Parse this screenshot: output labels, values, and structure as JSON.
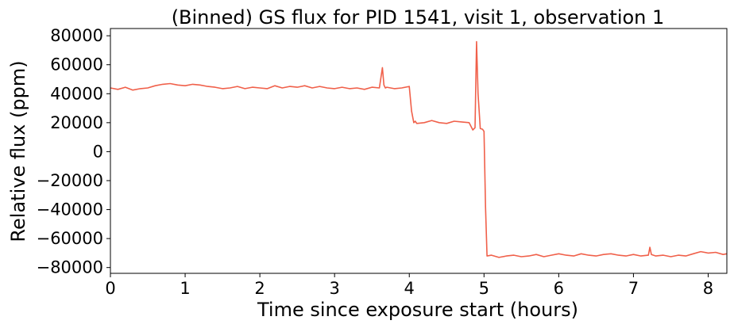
{
  "chart_data": {
    "type": "line",
    "title": "(Binned) GS flux for PID 1541, visit 1, observation 1",
    "xlabel": "Time since exposure start (hours)",
    "ylabel": "Relative flux (ppm)",
    "xlim": [
      0,
      8.25
    ],
    "ylim": [
      -84000,
      85000
    ],
    "xticks": [
      0,
      1,
      2,
      3,
      4,
      5,
      6,
      7,
      8
    ],
    "yticks": [
      -80000,
      -60000,
      -40000,
      -20000,
      0,
      20000,
      40000,
      60000,
      80000
    ],
    "xtick_labels": [
      "0",
      "1",
      "2",
      "3",
      "4",
      "5",
      "6",
      "7",
      "8"
    ],
    "ytick_labels": [
      "−80000",
      "−60000",
      "−40000",
      "−20000",
      "0",
      "20000",
      "40000",
      "60000",
      "80000"
    ],
    "grid": false,
    "series": [
      {
        "color": "#f0604a",
        "x": [
          0,
          0.1,
          0.2,
          0.3,
          0.4,
          0.5,
          0.6,
          0.7,
          0.8,
          0.9,
          1.0,
          1.1,
          1.2,
          1.3,
          1.4,
          1.5,
          1.6,
          1.7,
          1.8,
          1.9,
          2.0,
          2.1,
          2.2,
          2.3,
          2.4,
          2.5,
          2.6,
          2.7,
          2.8,
          2.9,
          3.0,
          3.1,
          3.2,
          3.3,
          3.4,
          3.5,
          3.6,
          3.64,
          3.66,
          3.68,
          3.7,
          3.8,
          3.9,
          4.0,
          4.03,
          4.06,
          4.08,
          4.1,
          4.2,
          4.3,
          4.4,
          4.5,
          4.6,
          4.7,
          4.8,
          4.85,
          4.88,
          4.9,
          4.92,
          4.95,
          4.98,
          5.0,
          5.02,
          5.04,
          5.1,
          5.2,
          5.3,
          5.4,
          5.5,
          5.6,
          5.7,
          5.8,
          5.9,
          6.0,
          6.1,
          6.2,
          6.3,
          6.4,
          6.5,
          6.6,
          6.7,
          6.8,
          6.9,
          7.0,
          7.1,
          7.2,
          7.22,
          7.24,
          7.3,
          7.4,
          7.5,
          7.6,
          7.7,
          7.8,
          7.9,
          8.0,
          8.1,
          8.2,
          8.25
        ],
        "y": [
          44000,
          43000,
          44500,
          42500,
          43500,
          44000,
          45500,
          46500,
          47000,
          46000,
          45500,
          46500,
          46000,
          45000,
          44500,
          43500,
          44000,
          45000,
          43500,
          44500,
          44000,
          43500,
          45500,
          44000,
          45000,
          44500,
          45500,
          44000,
          45000,
          44000,
          43500,
          44500,
          43500,
          44000,
          43000,
          44500,
          44000,
          58000,
          46000,
          44000,
          44500,
          43500,
          44000,
          45000,
          28000,
          20000,
          21000,
          19500,
          20000,
          21500,
          20000,
          19500,
          21000,
          20500,
          20000,
          15000,
          16500,
          76000,
          40000,
          16000,
          15500,
          14000,
          -38000,
          -72000,
          -71500,
          -73000,
          -72000,
          -71500,
          -72500,
          -72000,
          -71000,
          -72500,
          -71500,
          -70500,
          -71500,
          -72000,
          -70500,
          -71500,
          -72000,
          -71000,
          -70500,
          -71500,
          -72000,
          -71000,
          -72000,
          -71500,
          -66000,
          -71000,
          -72000,
          -71500,
          -72500,
          -71500,
          -72000,
          -70500,
          -69000,
          -70000,
          -69500,
          -71000,
          -70500
        ]
      }
    ]
  }
}
